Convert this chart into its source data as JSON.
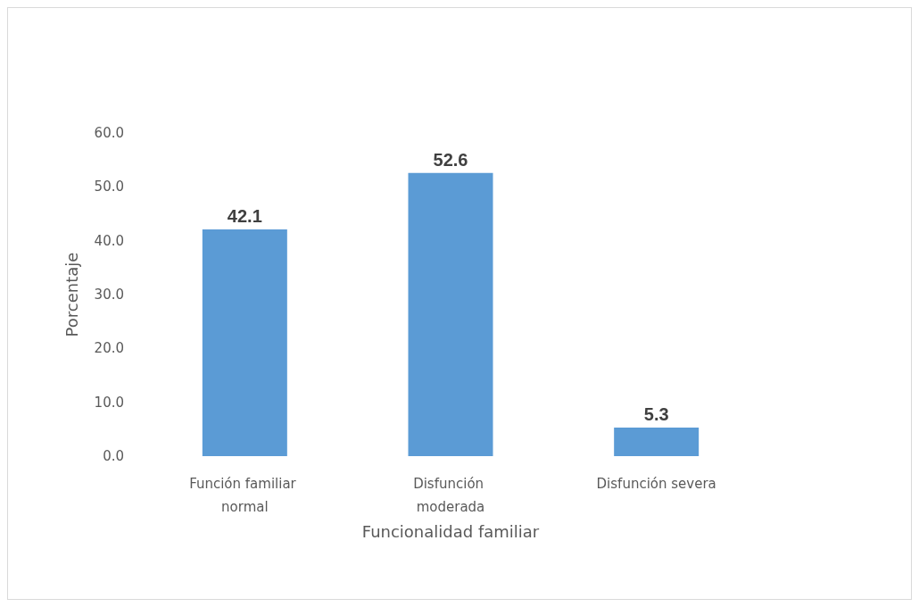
{
  "chart_data": {
    "type": "bar",
    "xlabel": "Funcionalidad familiar",
    "ylabel": "Porcentaje",
    "categories": [
      "Función familiar normal",
      "Disfunción moderada",
      "Disfunción severa"
    ],
    "values": [
      42.1,
      52.6,
      5.3
    ],
    "color": "#5b9bd5",
    "ylim": [
      0,
      60
    ],
    "yticks": [
      {
        "value": 0,
        "label": "0.0"
      },
      {
        "value": 10,
        "label": "10.0"
      },
      {
        "value": 20,
        "label": "20.0"
      },
      {
        "value": 30,
        "label": "30.0"
      },
      {
        "value": 40,
        "label": "40.0"
      },
      {
        "value": 50,
        "label": "50.0"
      },
      {
        "value": 60,
        "label": "60.0"
      }
    ],
    "data_labels": true,
    "grid": false
  }
}
